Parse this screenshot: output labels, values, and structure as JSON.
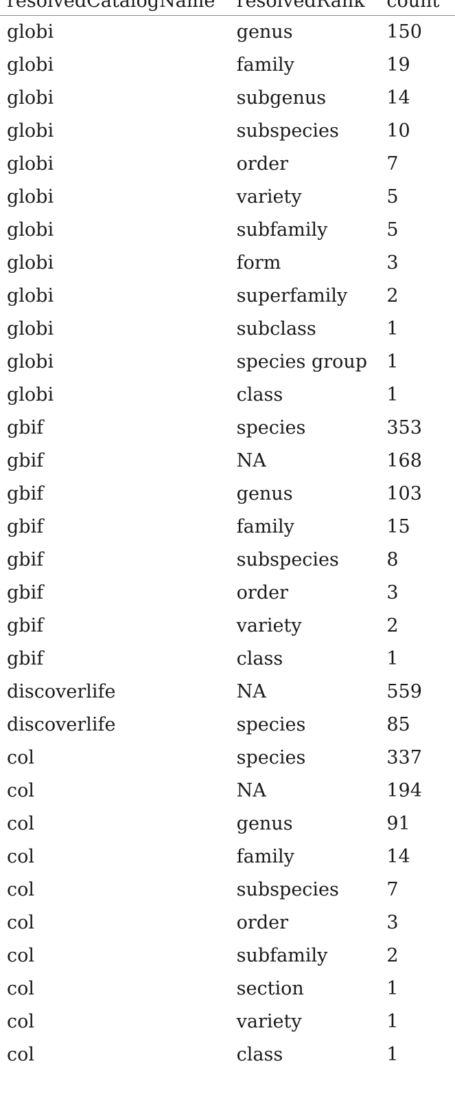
{
  "table": {
    "headers": [
      "resolvedCatalogName",
      "resolvedRank",
      "count"
    ],
    "rows": [
      [
        "globi",
        "genus",
        "150"
      ],
      [
        "globi",
        "family",
        "19"
      ],
      [
        "globi",
        "subgenus",
        "14"
      ],
      [
        "globi",
        "subspecies",
        "10"
      ],
      [
        "globi",
        "order",
        "7"
      ],
      [
        "globi",
        "variety",
        "5"
      ],
      [
        "globi",
        "subfamily",
        "5"
      ],
      [
        "globi",
        "form",
        "3"
      ],
      [
        "globi",
        "superfamily",
        "2"
      ],
      [
        "globi",
        "subclass",
        "1"
      ],
      [
        "globi",
        "species group",
        "1"
      ],
      [
        "globi",
        "class",
        "1"
      ],
      [
        "gbif",
        "species",
        "353"
      ],
      [
        "gbif",
        "NA",
        "168"
      ],
      [
        "gbif",
        "genus",
        "103"
      ],
      [
        "gbif",
        "family",
        "15"
      ],
      [
        "gbif",
        "subspecies",
        "8"
      ],
      [
        "gbif",
        "order",
        "3"
      ],
      [
        "gbif",
        "variety",
        "2"
      ],
      [
        "gbif",
        "class",
        "1"
      ],
      [
        "discoverlife",
        "NA",
        "559"
      ],
      [
        "discoverlife",
        "species",
        "85"
      ],
      [
        "col",
        "species",
        "337"
      ],
      [
        "col",
        "NA",
        "194"
      ],
      [
        "col",
        "genus",
        "91"
      ],
      [
        "col",
        "family",
        "14"
      ],
      [
        "col",
        "subspecies",
        "7"
      ],
      [
        "col",
        "order",
        "3"
      ],
      [
        "col",
        "subfamily",
        "2"
      ],
      [
        "col",
        "section",
        "1"
      ],
      [
        "col",
        "variety",
        "1"
      ],
      [
        "col",
        "class",
        "1"
      ]
    ]
  }
}
